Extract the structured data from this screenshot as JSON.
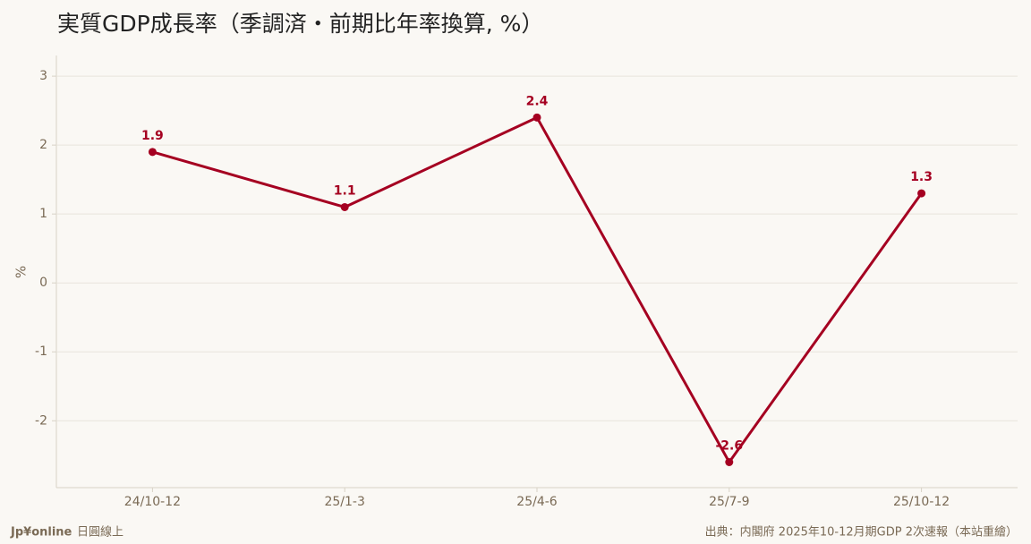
{
  "chart_data": {
    "type": "line",
    "title": "実質GDP成長率（季調済・前期比年率換算, %）",
    "y_label": "%",
    "categories": [
      "24/10-12",
      "25/1-3",
      "25/4-6",
      "25/7-9",
      "25/10-12"
    ],
    "series": [
      {
        "name": "実質GDP成長率",
        "color": "#a50021",
        "values": [
          1.9,
          1.1,
          2.4,
          -2.6,
          1.3
        ]
      }
    ],
    "ylim": [
      -2.97,
      3.3
    ],
    "yticks": [
      -2,
      -1,
      0,
      1,
      2,
      3
    ],
    "grid": true,
    "brand": "Jp¥online",
    "brand_sub": "日圓線上",
    "source": "出典：内閣府 2025年10-12月期GDP 2次速報（本站重繪）"
  }
}
